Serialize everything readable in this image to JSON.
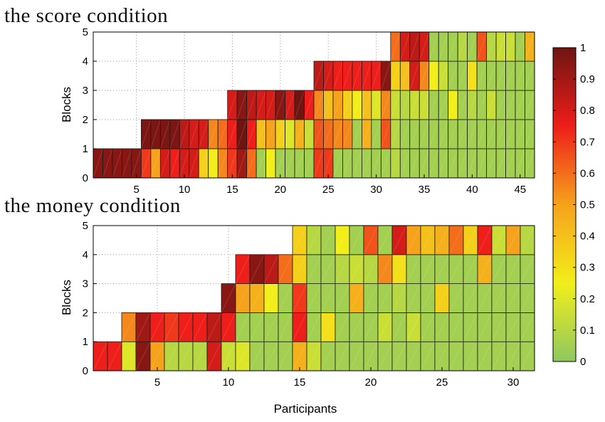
{
  "chart_data": [
    {
      "type": "heatmap",
      "title": "the score condition",
      "ylabel": "Blocks",
      "xlabel": "",
      "xlim": [
        0.5,
        46.5
      ],
      "ylim": [
        0,
        5
      ],
      "xticks": [
        5,
        10,
        15,
        20,
        25,
        30,
        35,
        40,
        45
      ],
      "yticks": [
        0,
        1,
        2,
        3,
        4,
        5
      ],
      "participants": 46,
      "blocks_per_participant": [
        1,
        1,
        1,
        1,
        1,
        2,
        2,
        2,
        2,
        2,
        2,
        2,
        2,
        2,
        3,
        3,
        3,
        3,
        3,
        3,
        3,
        3,
        3,
        4,
        4,
        4,
        4,
        4,
        4,
        4,
        4,
        5,
        5,
        5,
        5,
        5,
        5,
        5,
        5,
        5,
        5,
        5,
        5,
        5,
        5,
        5
      ],
      "values": [
        [
          0.95
        ],
        [
          0.95
        ],
        [
          0.95
        ],
        [
          0.95
        ],
        [
          0.95
        ],
        [
          0.7,
          0.97
        ],
        [
          0.5,
          0.97
        ],
        [
          0.8,
          0.97
        ],
        [
          0.75,
          0.97
        ],
        [
          0.8,
          0.85
        ],
        [
          0.8,
          0.8
        ],
        [
          0.35,
          0.8
        ],
        [
          0.25,
          0.55
        ],
        [
          0.55,
          0.6
        ],
        [
          0.7,
          0.75,
          0.8
        ],
        [
          0.9,
          1.0,
          0.95
        ],
        [
          0.6,
          0.75,
          0.85
        ],
        [
          0.05,
          0.4,
          0.8
        ],
        [
          0.25,
          0.5,
          0.8
        ],
        [
          0.05,
          0.35,
          0.95
        ],
        [
          0.05,
          0.2,
          0.8
        ],
        [
          0.05,
          0.45,
          1.0
        ],
        [
          0.05,
          0.15,
          0.75
        ],
        [
          0.7,
          0.65,
          0.55,
          0.85
        ],
        [
          0.7,
          0.6,
          0.4,
          0.8
        ],
        [
          0.05,
          0.55,
          0.5,
          0.75
        ],
        [
          0.05,
          0.55,
          0.35,
          0.75
        ],
        [
          0.05,
          0.05,
          0.25,
          0.75
        ],
        [
          0.05,
          0.45,
          0.4,
          0.75
        ],
        [
          0.05,
          0.05,
          0.2,
          0.75
        ],
        [
          0.05,
          0.65,
          0.55,
          0.95
        ],
        [
          0.1,
          0.1,
          0.15,
          0.35,
          0.6
        ],
        [
          0.05,
          0.05,
          0.1,
          0.4,
          0.8
        ],
        [
          0.05,
          0.05,
          0.15,
          0.8,
          0.85
        ],
        [
          0.05,
          0.05,
          0.15,
          0.55,
          0.8
        ],
        [
          0.05,
          0.05,
          0.05,
          0.25,
          0.05
        ],
        [
          0.05,
          0.05,
          0.05,
          0.15,
          0.05
        ],
        [
          0.05,
          0.05,
          0.25,
          0.05,
          0.05
        ],
        [
          0.05,
          0.05,
          0.05,
          0.05,
          0.1
        ],
        [
          0.05,
          0.05,
          0.1,
          0.3,
          0.05
        ],
        [
          0.05,
          0.05,
          0.05,
          0.05,
          0.65
        ],
        [
          0.05,
          0.05,
          0.15,
          0.05,
          0.1
        ],
        [
          0.05,
          0.05,
          0.05,
          0.05,
          0.15
        ],
        [
          0.05,
          0.05,
          0.05,
          0.05,
          0.15
        ],
        [
          0.05,
          0.05,
          0.05,
          0.05,
          0.05
        ],
        [
          0.05,
          0.05,
          0.05,
          0.05,
          0.45
        ]
      ]
    },
    {
      "type": "heatmap",
      "title": "the money condition",
      "ylabel": "Blocks",
      "xlabel": "Participants",
      "xlim": [
        0.5,
        31.5
      ],
      "ylim": [
        0,
        5
      ],
      "xticks": [
        5,
        10,
        15,
        20,
        25,
        30
      ],
      "yticks": [
        0,
        1,
        2,
        3,
        4,
        5
      ],
      "participants": 31,
      "blocks_per_participant": [
        1,
        1,
        2,
        2,
        2,
        2,
        2,
        2,
        2,
        3,
        4,
        4,
        4,
        4,
        5,
        5,
        5,
        5,
        5,
        5,
        5,
        5,
        5,
        5,
        5,
        5,
        5,
        5,
        5,
        5,
        5
      ],
      "values": [
        [
          0.75
        ],
        [
          0.75
        ],
        [
          0.2,
          0.55
        ],
        [
          0.95,
          0.9
        ],
        [
          0.5,
          0.75
        ],
        [
          0.1,
          0.7
        ],
        [
          0.1,
          0.75
        ],
        [
          0.1,
          0.75
        ],
        [
          0.8,
          0.85
        ],
        [
          0.15,
          0.75,
          0.95
        ],
        [
          0.2,
          0.05,
          0.5,
          0.75
        ],
        [
          0.05,
          0.05,
          0.45,
          0.95
        ],
        [
          0.05,
          0.05,
          0.25,
          0.85
        ],
        [
          0.05,
          0.05,
          0.05,
          0.6
        ],
        [
          0.45,
          0.75,
          0.7,
          0.35,
          0.35
        ],
        [
          0.15,
          0.05,
          0.05,
          0.05,
          0.1
        ],
        [
          0.05,
          0.3,
          0.05,
          0.05,
          0.05
        ],
        [
          0.05,
          0.05,
          0.05,
          0.1,
          0.25
        ],
        [
          0.05,
          0.05,
          0.45,
          0.15,
          0.05
        ],
        [
          0.05,
          0.05,
          0.05,
          0.1,
          0.65
        ],
        [
          0.05,
          0.15,
          0.05,
          0.55,
          0.05
        ],
        [
          0.05,
          0.05,
          0.1,
          0.3,
          0.8
        ],
        [
          0.05,
          0.15,
          0.05,
          0.05,
          0.5
        ],
        [
          0.05,
          0.05,
          0.05,
          0.05,
          0.4
        ],
        [
          0.05,
          0.05,
          0.35,
          0.05,
          0.45
        ],
        [
          0.05,
          0.05,
          0.05,
          0.05,
          0.6
        ],
        [
          0.05,
          0.05,
          0.05,
          0.05,
          0.35
        ],
        [
          0.05,
          0.05,
          0.05,
          0.45,
          0.75
        ],
        [
          0.05,
          0.05,
          0.05,
          0.05,
          0.15
        ],
        [
          0.05,
          0.05,
          0.05,
          0.05,
          0.5
        ],
        [
          0.05,
          0.05,
          0.05,
          0.05,
          0.1
        ]
      ]
    }
  ],
  "colorbar": {
    "min": 0,
    "max": 1,
    "tick_labels": [
      "0",
      "0.1",
      "0.2",
      "0.3",
      "0.4",
      "0.5",
      "0.6",
      "0.7",
      "0.8",
      "0.9",
      "1"
    ],
    "colormap": [
      "#8fc85f",
      "#f2ee1a",
      "#f6a21c",
      "#ee1e1a",
      "#6e1512"
    ]
  }
}
